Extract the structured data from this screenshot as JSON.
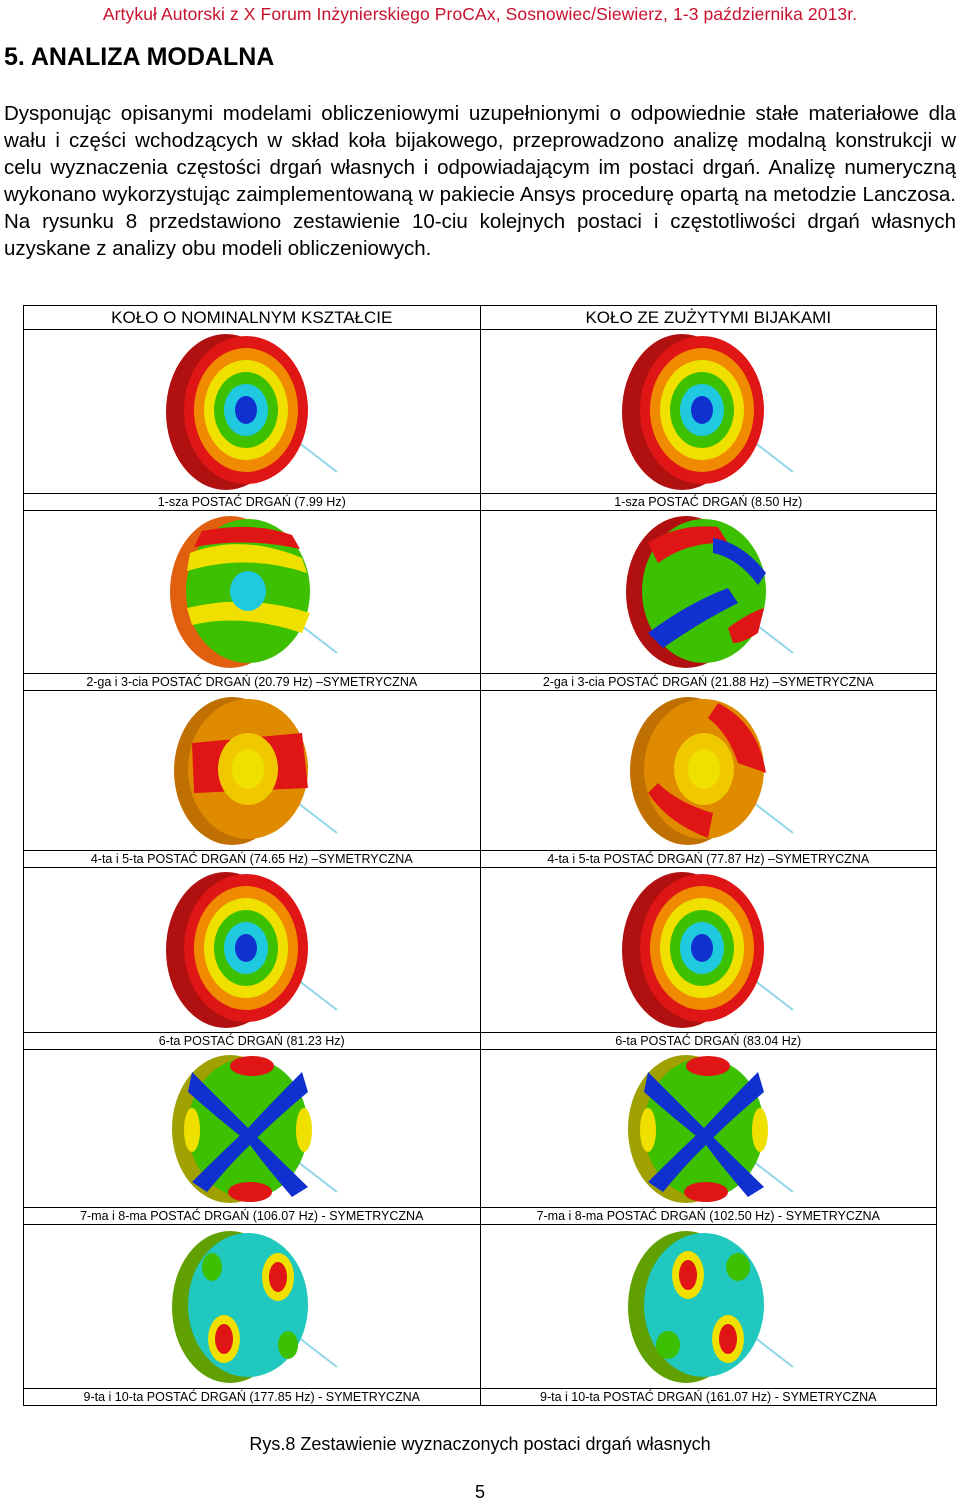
{
  "header": "Artykuł Autorski z X Forum Inżynierskiego ProCAx, Sosnowiec/Siewierz, 1-3 października 2013r.",
  "section_title": "5. ANALIZA MODALNA",
  "paragraph": "Dysponując opisanymi modelami obliczeniowymi uzupełnionymi o odpowiednie stałe materiałowe dla wału i części wchodzących w skład koła bijakowego, przeprowadzono analizę modalną konstrukcji w celu wyznaczenia częstości drgań własnych i odpowiadającym im postaci drgań. Analizę numeryczną wykonano wykorzystując zaimplementowaną w pakiecie Ansys procedurę opartą na metodzie Lanczosa. Na rysunku 8 przedstawiono zestawienie 10-ciu kolejnych postaci i częstotliwości drgań własnych uzyskane z analizy obu modeli obliczeniowych.",
  "table": {
    "col_headers": [
      "KOŁO O NOMINALNYM KSZTAŁCIE",
      "KOŁO ZE ZUŻYTYMI BIJAKAMI"
    ],
    "rows": [
      {
        "left": "1-sza POSTAĆ DRGAŃ (7.99 Hz)",
        "right": "1-sza POSTAĆ DRGAŃ (8.50 Hz)"
      },
      {
        "left": "2-ga i 3-cia POSTAĆ DRGAŃ (20.79 Hz) –SYMETRYCZNA",
        "right": "2-ga i 3-cia POSTAĆ DRGAŃ (21.88 Hz) –SYMETRYCZNA"
      },
      {
        "left": "4-ta i 5-ta POSTAĆ DRGAŃ (74.65 Hz) –SYMETRYCZNA",
        "right": "4-ta i 5-ta POSTAĆ DRGAŃ (77.87 Hz) –SYMETRYCZNA"
      },
      {
        "left": "6-ta POSTAĆ DRGAŃ (81.23 Hz)",
        "right": "6-ta POSTAĆ DRGAŃ (83.04 Hz)"
      },
      {
        "left": "7-ma i 8-ma POSTAĆ DRGAŃ (106.07 Hz) - SYMETRYCZNA",
        "right": "7-ma i 8-ma POSTAĆ DRGAŃ (102.50 Hz) - SYMETRYCZNA"
      },
      {
        "left": "9-ta i 10-ta POSTAĆ DRGAŃ (177.85 Hz) - SYMETRYCZNA",
        "right": "9-ta i 10-ta POSTAĆ DRGAŃ (161.07 Hz) - SYMETRYCZNA"
      }
    ]
  },
  "figure_caption": "Rys.8 Zestawienie wyznaczonych postaci drgań własnych",
  "page_number": "5",
  "colors": {
    "header": "#c8102e",
    "contour_red": "#e01515",
    "contour_orange": "#f08a00",
    "contour_yellow": "#f0e000",
    "contour_green": "#3cc000",
    "contour_cyan": "#20c8e0",
    "contour_blue": "#1030d0"
  }
}
